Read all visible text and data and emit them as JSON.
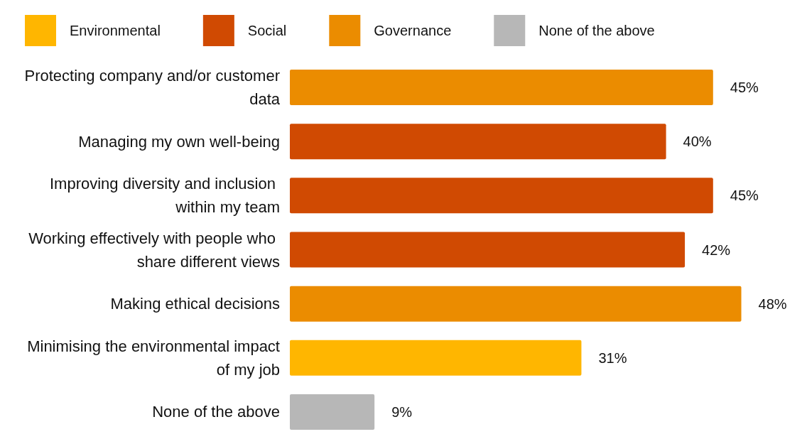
{
  "chart_data": {
    "type": "bar",
    "orientation": "horizontal",
    "categories": [
      "Protecting company and/or customer data",
      "Managing my own well-being",
      "Improving diversity and inclusion within my team",
      "Working effectively with people who share different views",
      "Making ethical decisions",
      "Minimising the environmental impact of my job",
      "None of the above"
    ],
    "series": [
      {
        "name": "Environmental",
        "color": "#ffb600",
        "values": [
          null,
          null,
          null,
          null,
          null,
          31,
          null
        ],
        "value_labels": [
          null,
          null,
          null,
          null,
          null,
          "31%",
          null
        ]
      },
      {
        "name": "Social",
        "color": "#d04a02",
        "values": [
          null,
          40,
          45,
          42,
          null,
          null,
          null
        ],
        "value_labels": [
          null,
          "40%",
          "45%",
          "42%",
          null,
          null,
          null
        ]
      },
      {
        "name": "Governance",
        "color": "#eb8c00",
        "values": [
          45,
          null,
          null,
          null,
          48,
          null,
          null
        ],
        "value_labels": [
          "45%",
          null,
          null,
          null,
          "48%",
          null,
          null
        ]
      },
      {
        "name": "None of the above",
        "color": "#b7b7b7",
        "values": [
          null,
          null,
          null,
          null,
          null,
          null,
          9
        ],
        "value_labels": [
          null,
          null,
          null,
          null,
          null,
          null,
          "9%"
        ]
      }
    ],
    "tick_labels": "y",
    "grid": false,
    "legend": "top"
  }
}
